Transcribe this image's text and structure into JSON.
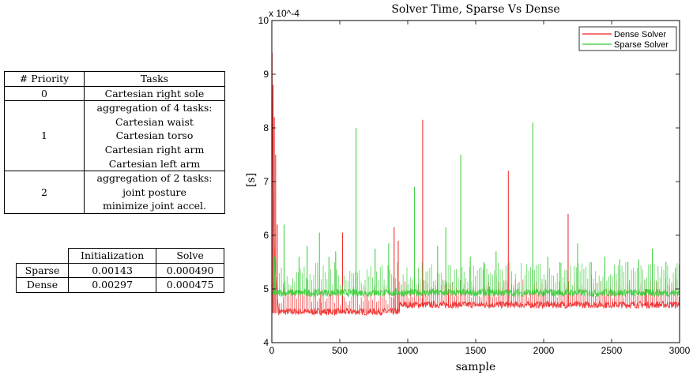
{
  "priority_table": {
    "headers": [
      "# Priority",
      "Tasks"
    ],
    "rows": [
      {
        "priority": "0",
        "tasks": [
          "Cartesian right sole"
        ]
      },
      {
        "priority": "1",
        "tasks": [
          "aggregation of 4 tasks:",
          "Cartesian waist",
          "Cartesian torso",
          "Cartesian right arm",
          "Cartesian left arm"
        ]
      },
      {
        "priority": "2",
        "tasks": [
          "aggregation of 2 tasks:",
          "joint posture",
          "minimize joint accel."
        ]
      }
    ]
  },
  "timing_table": {
    "headers": [
      "",
      "Initialization",
      "Solve"
    ],
    "rows": [
      {
        "label": "Sparse",
        "initialization": "0.00143",
        "solve": "0.000490"
      },
      {
        "label": "Dense",
        "initialization": "0.00297",
        "solve": "0.000475"
      }
    ]
  },
  "chart_data": {
    "type": "line",
    "title": "Solver Time, Sparse Vs Dense",
    "xlabel": "sample",
    "ylabel": "[s]",
    "y_multiplier": "x 10^-4",
    "xlim": [
      0,
      3000
    ],
    "ylim": [
      4,
      10
    ],
    "x_ticks": [
      0,
      500,
      1000,
      1500,
      2000,
      2500,
      3000
    ],
    "y_ticks": [
      4,
      5,
      6,
      7,
      8,
      9,
      10
    ],
    "legend_position": "top-right",
    "colors": {
      "dense": "#ee2222",
      "sparse": "#33cc33"
    },
    "series": [
      {
        "name": "Dense Solver",
        "color": "#ee2222",
        "baseline_segments": [
          {
            "x_start": 50,
            "x_end": 940,
            "value": 4.55
          },
          {
            "x_start": 940,
            "x_end": 3000,
            "value": 4.68
          }
        ],
        "spikes": [
          {
            "x": 2,
            "value": 9.4
          },
          {
            "x": 10,
            "value": 8.8
          },
          {
            "x": 18,
            "value": 8.2
          },
          {
            "x": 28,
            "value": 7.5
          },
          {
            "x": 40,
            "value": 6.2
          },
          {
            "x": 520,
            "value": 6.05
          },
          {
            "x": 900,
            "value": 6.15
          },
          {
            "x": 930,
            "value": 5.9
          },
          {
            "x": 1110,
            "value": 8.15
          },
          {
            "x": 1740,
            "value": 7.2
          },
          {
            "x": 2180,
            "value": 6.4
          },
          {
            "x": 360,
            "value": 4.95
          },
          {
            "x": 700,
            "value": 4.9
          },
          {
            "x": 1300,
            "value": 5.0
          },
          {
            "x": 1600,
            "value": 5.05
          },
          {
            "x": 2000,
            "value": 4.95
          },
          {
            "x": 2450,
            "value": 5.1
          },
          {
            "x": 2750,
            "value": 5.0
          }
        ]
      },
      {
        "name": "Sparse Solver",
        "color": "#33cc33",
        "baseline_segments": [
          {
            "x_start": 0,
            "x_end": 3000,
            "value": 4.9
          }
        ],
        "spikes": [
          {
            "x": 20,
            "value": 5.6
          },
          {
            "x": 90,
            "value": 6.2
          },
          {
            "x": 200,
            "value": 5.6
          },
          {
            "x": 260,
            "value": 5.8
          },
          {
            "x": 350,
            "value": 6.05
          },
          {
            "x": 420,
            "value": 5.6
          },
          {
            "x": 470,
            "value": 5.7
          },
          {
            "x": 620,
            "value": 8.0
          },
          {
            "x": 760,
            "value": 5.75
          },
          {
            "x": 860,
            "value": 5.85
          },
          {
            "x": 1050,
            "value": 6.9
          },
          {
            "x": 1220,
            "value": 5.8
          },
          {
            "x": 1280,
            "value": 6.15
          },
          {
            "x": 1390,
            "value": 7.5
          },
          {
            "x": 1460,
            "value": 5.6
          },
          {
            "x": 1560,
            "value": 5.5
          },
          {
            "x": 1650,
            "value": 5.7
          },
          {
            "x": 1920,
            "value": 8.1
          },
          {
            "x": 2030,
            "value": 5.6
          },
          {
            "x": 2120,
            "value": 5.5
          },
          {
            "x": 2250,
            "value": 5.85
          },
          {
            "x": 2350,
            "value": 5.5
          },
          {
            "x": 2450,
            "value": 5.6
          },
          {
            "x": 2560,
            "value": 5.55
          },
          {
            "x": 2620,
            "value": 5.5
          },
          {
            "x": 2700,
            "value": 5.55
          },
          {
            "x": 2800,
            "value": 5.75
          },
          {
            "x": 2900,
            "value": 5.5
          },
          {
            "x": 2970,
            "value": 5.4
          }
        ]
      }
    ]
  }
}
